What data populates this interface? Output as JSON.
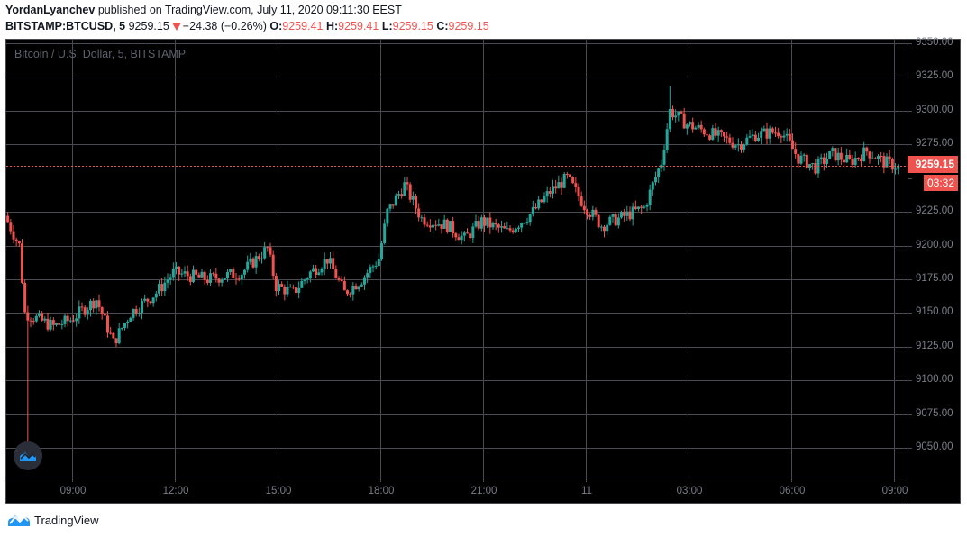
{
  "header": {
    "author": "YordanLyanchev",
    "published_text": "published on TradingView.com, July 11, 2020 09:11:30 EEST",
    "symbol": "BITSTAMP:BTCUSD, 5",
    "last_price": "9259.15",
    "change": "−24.38 (−0.26%)",
    "direction_icon": "down-triangle-icon",
    "ohlc": {
      "o_label": "O:",
      "o": "9259.41",
      "h_label": "H:",
      "h": "9259.41",
      "l_label": "L:",
      "l": "9259.15",
      "c_label": "C:",
      "c": "9259.15"
    }
  },
  "chart": {
    "legend": "Bitcoin / U.S. Dollar, 5, BITSTAMP",
    "last_price_label": "9259.15",
    "countdown_label": "03:32",
    "colors": {
      "up": "#26a69a",
      "down": "#ef5350",
      "background": "#000000",
      "grid": "#4a4a52",
      "axis_text": "#7b7e88",
      "last_price_line": "#ef5350"
    }
  },
  "footer": {
    "brand": "TradingView",
    "brand_icon": "tradingview-logo-icon"
  },
  "chart_data": {
    "type": "candlestick",
    "title": "Bitcoin / U.S. Dollar, 5, BITSTAMP",
    "symbol": "BITSTAMP:BTCUSD",
    "interval": "5",
    "xlabel": "",
    "ylabel": "",
    "ylim": [
      9035,
      9355
    ],
    "grid": true,
    "price_ticks": [
      "9350.00",
      "9325.00",
      "9300.00",
      "9275.00",
      "9250.00",
      "9225.00",
      "9200.00",
      "9175.00",
      "9150.00",
      "9125.00",
      "9100.00",
      "9075.00",
      "9050.00"
    ],
    "time_ticks": [
      "09:00",
      "12:00",
      "15:00",
      "18:00",
      "21:00",
      "11",
      "03:00",
      "06:00",
      "09:00"
    ],
    "last_price": 9259.15,
    "open": 9259.41,
    "high": 9259.41,
    "low": 9259.15,
    "close": 9259.15,
    "change": -24.38,
    "change_pct": -0.26,
    "anchors_time_price": [
      [
        "07:05",
        9222
      ],
      [
        "07:30",
        9200
      ],
      [
        "07:40",
        9150
      ],
      [
        "08:30",
        9140
      ],
      [
        "09:00",
        9145
      ],
      [
        "09:45",
        9160
      ],
      [
        "10:15",
        9128
      ],
      [
        "10:45",
        9150
      ],
      [
        "11:30",
        9165
      ],
      [
        "12:00",
        9180
      ],
      [
        "13:00",
        9175
      ],
      [
        "14:00",
        9180
      ],
      [
        "14:45",
        9198
      ],
      [
        "15:00",
        9170
      ],
      [
        "15:30",
        9165
      ],
      [
        "16:00",
        9180
      ],
      [
        "16:30",
        9190
      ],
      [
        "17:00",
        9165
      ],
      [
        "17:30",
        9175
      ],
      [
        "18:00",
        9190
      ],
      [
        "18:15",
        9225
      ],
      [
        "18:45",
        9245
      ],
      [
        "19:15",
        9220
      ],
      [
        "20:00",
        9215
      ],
      [
        "20:30",
        9205
      ],
      [
        "21:00",
        9218
      ],
      [
        "21:45",
        9210
      ],
      [
        "22:30",
        9225
      ],
      [
        "23:00",
        9240
      ],
      [
        "23:30",
        9250
      ],
      [
        "00:00",
        9230
      ],
      [
        "00:30",
        9215
      ],
      [
        "01:00",
        9220
      ],
      [
        "01:45",
        9228
      ],
      [
        "02:15",
        9262
      ],
      [
        "02:30",
        9300
      ],
      [
        "03:00",
        9290
      ],
      [
        "03:30",
        9285
      ],
      [
        "04:00",
        9280
      ],
      [
        "04:30",
        9275
      ],
      [
        "05:00",
        9282
      ],
      [
        "05:45",
        9285
      ],
      [
        "06:15",
        9265
      ],
      [
        "06:45",
        9258
      ],
      [
        "07:15",
        9268
      ],
      [
        "07:45",
        9262
      ],
      [
        "08:15",
        9270
      ],
      [
        "08:45",
        9262
      ],
      [
        "09:05",
        9259.15
      ]
    ]
  }
}
